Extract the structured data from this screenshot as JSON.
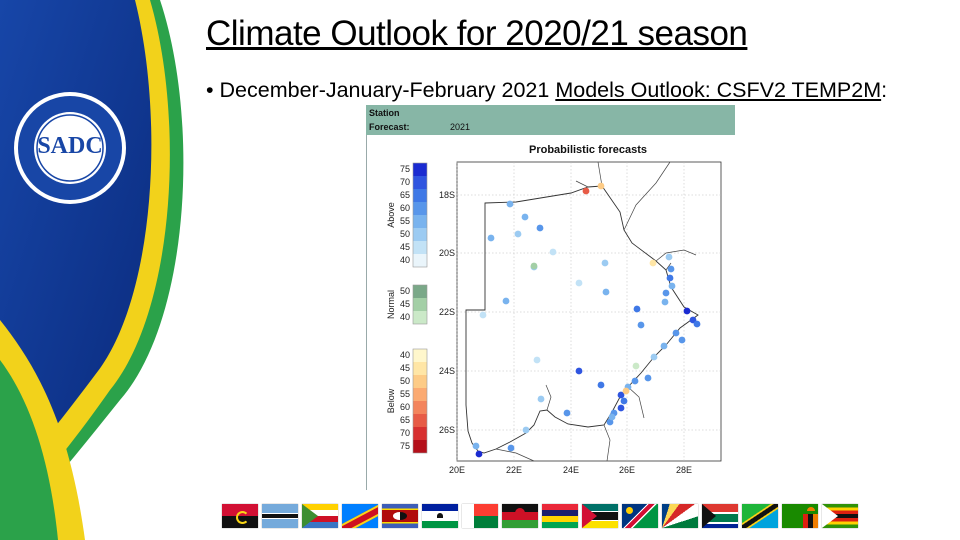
{
  "slide": {
    "title": "Climate Outlook for 2020/21 season",
    "bullet_prefix": "December-January-February 2021",
    "bullet_link": "Models Outlook: CSFV2 TEMP2M",
    "bullet_suffix": ":"
  },
  "logo": {
    "acronym": "SADC",
    "ring_text_top": "SOUTHERN AFRICAN DEVELOPMENT COMMUNITY",
    "ring_text_bottom": "TOWARDS A COMMON FUTURE"
  },
  "panel": {
    "station_label": "Station",
    "forecast_label": "Forecast:",
    "forecast_value": "2021",
    "chart_title": "Probabilistic forecasts"
  },
  "legend": {
    "above": {
      "label": "Above",
      "ticks": [
        "75",
        "70",
        "65",
        "60",
        "55",
        "50",
        "45",
        "40"
      ],
      "colors": [
        "#1a2bd1",
        "#2f55e0",
        "#3f78e6",
        "#5896ea",
        "#79b3ee",
        "#9ccbf2",
        "#c2e2f6",
        "#eaf5fb"
      ]
    },
    "normal": {
      "label": "Normal",
      "ticks": [
        "50",
        "45",
        "40"
      ],
      "colors": [
        "#7aa888",
        "#a3cfa6",
        "#cbe9c8"
      ]
    },
    "below": {
      "label": "Below",
      "ticks": [
        "40",
        "45",
        "50",
        "55",
        "60",
        "65",
        "70",
        "75"
      ],
      "colors": [
        "#fff7cc",
        "#ffe6a6",
        "#fdcb86",
        "#fbaa72",
        "#f3845c",
        "#e75b46",
        "#d73030",
        "#b4101a"
      ]
    }
  },
  "map": {
    "x_ticks": [
      "20E",
      "22E",
      "24E",
      "26E",
      "28E"
    ],
    "y_ticks": [
      "18S",
      "20S",
      "22S",
      "24S",
      "26S"
    ],
    "grid": true
  },
  "flags": [
    "angola",
    "botswana",
    "comoros",
    "drc",
    "eswatini",
    "lesotho",
    "madagascar",
    "malawi",
    "mauritius",
    "mozambique",
    "namibia",
    "seychelles",
    "south-africa",
    "tanzania",
    "zambia",
    "zimbabwe"
  ]
}
